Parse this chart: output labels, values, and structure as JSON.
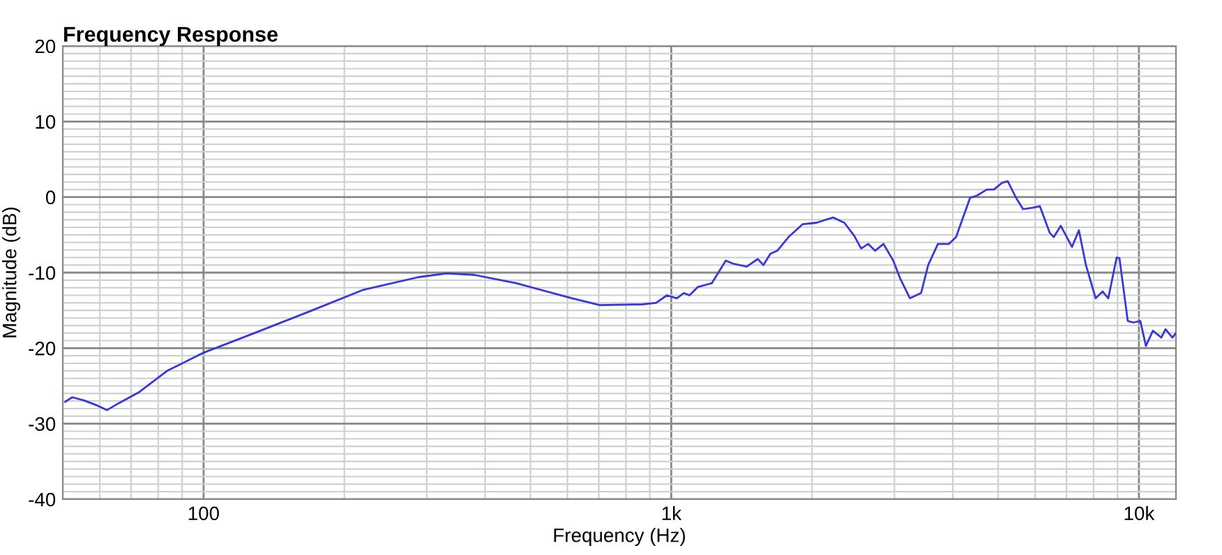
{
  "chart_data": {
    "type": "line",
    "title": "Frequency Response",
    "xlabel": "Frequency (Hz)",
    "ylabel": "Magnitude (dB)",
    "log": "x",
    "grid": true,
    "marker": "none",
    "line_style": "solid",
    "xlim": [
      50,
      12000
    ],
    "ylim": [
      -40,
      20
    ],
    "xticks": [
      {
        "value": 100,
        "label": "100"
      },
      {
        "value": 1000,
        "label": "1k"
      },
      {
        "value": 10000,
        "label": "10k"
      }
    ],
    "yticks": [
      -40,
      -30,
      -20,
      -10,
      0,
      10,
      20
    ],
    "series": [
      {
        "color": "#3838d8",
        "x": [
          50.6,
          52.4,
          55.4,
          59.3,
          62.2,
          65.8,
          72.9,
          83.6,
          100,
          126,
          166,
          219,
          288,
          331,
          379,
          466,
          614,
          704,
          866,
          928,
          979,
          1028,
          1064,
          1094,
          1140,
          1221,
          1308,
          1353,
          1450,
          1531,
          1574,
          1629,
          1686,
          1781,
          1908,
          2044,
          2115,
          2220,
          2345,
          2460,
          2547,
          2636,
          2728,
          2843,
          2983,
          3088,
          3239,
          3422,
          3543,
          3717,
          3926,
          4064,
          4355,
          4507,
          4727,
          4894,
          5099,
          5242,
          5462,
          5653,
          5932,
          6140,
          6442,
          6576,
          6806,
          7192,
          7441,
          7703,
          8081,
          8364,
          8599,
          8962,
          9086,
          9465,
          9728,
          10069,
          10349,
          10712,
          11165,
          11398,
          11793,
          12000
        ],
        "values": [
          -27.1,
          -26.5,
          -26.9,
          -27.6,
          -28.2,
          -27.3,
          -25.8,
          -23.0,
          -20.6,
          -18.2,
          -15.3,
          -12.3,
          -10.6,
          -10.1,
          -10.3,
          -11.4,
          -13.4,
          -14.3,
          -14.2,
          -14.0,
          -13.0,
          -13.4,
          -12.7,
          -13.0,
          -11.9,
          -11.4,
          -8.4,
          -8.8,
          -9.2,
          -8.2,
          -9.0,
          -7.5,
          -7.1,
          -5.3,
          -3.6,
          -3.4,
          -3.1,
          -2.7,
          -3.4,
          -5.1,
          -6.8,
          -6.2,
          -7.1,
          -6.2,
          -8.4,
          -10.8,
          -13.4,
          -12.7,
          -9.0,
          -6.2,
          -6.2,
          -5.3,
          -0.1,
          0.2,
          1.0,
          1.0,
          1.9,
          2.1,
          -0.1,
          -1.6,
          -1.4,
          -1.2,
          -4.7,
          -5.3,
          -3.8,
          -6.6,
          -4.4,
          -9.0,
          -13.4,
          -12.5,
          -13.4,
          -8.0,
          -8.1,
          -16.4,
          -16.6,
          -16.4,
          -19.7,
          -17.7,
          -18.6,
          -17.5,
          -18.6,
          -18.0
        ]
      }
    ]
  }
}
